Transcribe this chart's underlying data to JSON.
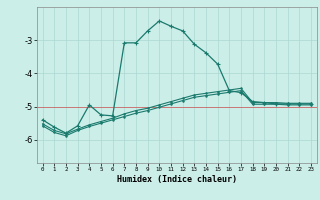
{
  "xlabel": "Humidex (Indice chaleur)",
  "xlim": [
    -0.5,
    23.5
  ],
  "ylim": [
    -6.7,
    -2.0
  ],
  "background_color": "#cceee8",
  "grid_color": "#aad8d0",
  "line_color": "#1a7a6e",
  "red_line_color": "#cc6666",
  "xticks": [
    0,
    1,
    2,
    3,
    4,
    5,
    6,
    7,
    8,
    9,
    10,
    11,
    12,
    13,
    14,
    15,
    16,
    17,
    18,
    19,
    20,
    21,
    22,
    23
  ],
  "yticks": [
    -6,
    -5,
    -4,
    -3
  ],
  "series1_x": [
    0,
    1,
    2,
    3,
    4,
    5,
    6,
    7,
    8,
    9,
    10,
    11,
    12,
    13,
    14,
    15,
    16,
    17,
    18,
    19,
    20,
    21,
    22,
    23
  ],
  "series1_y": [
    -5.4,
    -5.62,
    -5.8,
    -5.58,
    -4.95,
    -5.25,
    -5.28,
    -3.08,
    -3.08,
    -2.72,
    -2.42,
    -2.58,
    -2.72,
    -3.12,
    -3.38,
    -3.72,
    -4.52,
    -4.58,
    -4.85,
    -4.88,
    -4.92,
    -4.92,
    -4.92,
    -4.92
  ],
  "series2_x": [
    0,
    1,
    2,
    3,
    4,
    5,
    6,
    7,
    8,
    9,
    10,
    11,
    12,
    13,
    14,
    15,
    16,
    17,
    18,
    19,
    20,
    21,
    22,
    23
  ],
  "series2_y": [
    -5.52,
    -5.72,
    -5.82,
    -5.68,
    -5.55,
    -5.45,
    -5.35,
    -5.22,
    -5.12,
    -5.05,
    -4.95,
    -4.85,
    -4.75,
    -4.65,
    -4.6,
    -4.55,
    -4.5,
    -4.45,
    -4.88,
    -4.88,
    -4.88,
    -4.9,
    -4.9,
    -4.9
  ],
  "series3_x": [
    0,
    1,
    2,
    3,
    4,
    5,
    6,
    7,
    8,
    9,
    10,
    11,
    12,
    13,
    14,
    15,
    16,
    17,
    18,
    19,
    20,
    21,
    22,
    23
  ],
  "series3_y": [
    -5.58,
    -5.78,
    -5.88,
    -5.72,
    -5.6,
    -5.5,
    -5.4,
    -5.3,
    -5.2,
    -5.12,
    -5.02,
    -4.92,
    -4.82,
    -4.72,
    -4.67,
    -4.62,
    -4.57,
    -4.52,
    -4.93,
    -4.93,
    -4.93,
    -4.95,
    -4.95,
    -4.95
  ]
}
